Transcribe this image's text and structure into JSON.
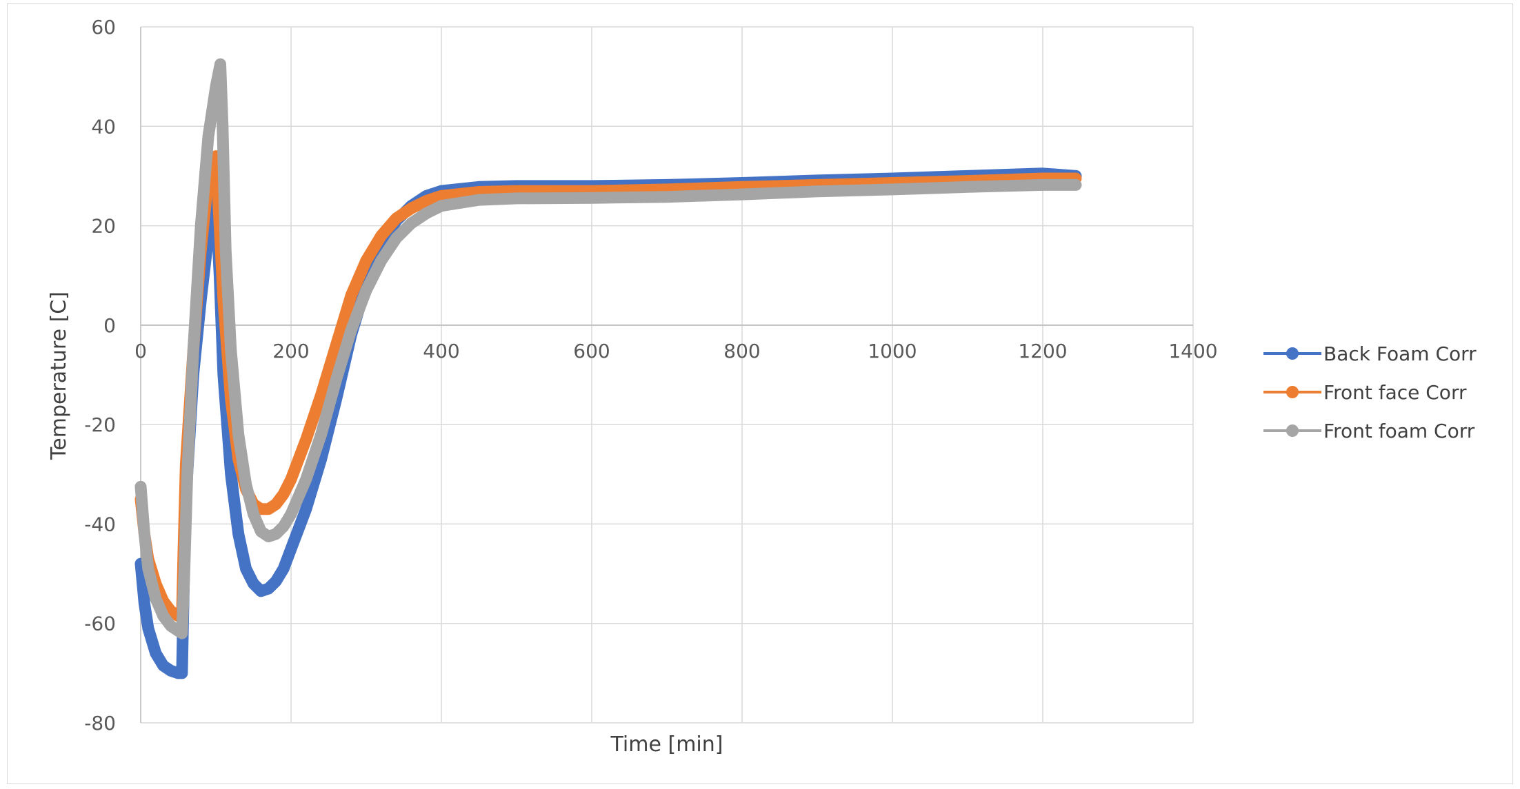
{
  "chart_data": {
    "type": "line",
    "title": "",
    "xlabel": "Time [min]",
    "ylabel": "Temperature [C]",
    "xlim": [
      0,
      1400
    ],
    "ylim": [
      -80,
      60
    ],
    "xticks": [
      0,
      200,
      400,
      600,
      800,
      1000,
      1200,
      1400
    ],
    "yticks": [
      -80,
      -60,
      -40,
      -20,
      0,
      20,
      40,
      60
    ],
    "x_tick_labels": [
      "0",
      "200",
      "400",
      "600",
      "800",
      "1000",
      "1200",
      "1400"
    ],
    "y_tick_labels": [
      "-80",
      "-60",
      "-40",
      "-20",
      "0",
      "20",
      "40",
      "60"
    ],
    "grid": true,
    "legend_position": "right",
    "series": [
      {
        "name": "Back Foam Corr",
        "color": "#4472C4",
        "points": [
          [
            0,
            -48
          ],
          [
            5,
            -56
          ],
          [
            10,
            -61
          ],
          [
            20,
            -66
          ],
          [
            30,
            -68.5
          ],
          [
            40,
            -69.5
          ],
          [
            50,
            -70
          ],
          [
            55,
            -70
          ],
          [
            57,
            -55
          ],
          [
            60,
            -35
          ],
          [
            70,
            -10
          ],
          [
            80,
            5
          ],
          [
            90,
            18
          ],
          [
            97,
            28
          ],
          [
            100,
            25
          ],
          [
            105,
            10
          ],
          [
            110,
            -10
          ],
          [
            120,
            -30
          ],
          [
            130,
            -42
          ],
          [
            140,
            -49
          ],
          [
            150,
            -52
          ],
          [
            160,
            -53.5
          ],
          [
            170,
            -53
          ],
          [
            180,
            -51.5
          ],
          [
            190,
            -49
          ],
          [
            200,
            -45
          ],
          [
            220,
            -37
          ],
          [
            240,
            -27
          ],
          [
            260,
            -15
          ],
          [
            280,
            -2
          ],
          [
            300,
            8
          ],
          [
            320,
            16
          ],
          [
            340,
            21
          ],
          [
            360,
            24
          ],
          [
            380,
            26
          ],
          [
            400,
            27
          ],
          [
            450,
            27.8
          ],
          [
            500,
            28
          ],
          [
            600,
            28
          ],
          [
            700,
            28.2
          ],
          [
            800,
            28.6
          ],
          [
            900,
            29.1
          ],
          [
            1000,
            29.5
          ],
          [
            1100,
            30
          ],
          [
            1200,
            30.5
          ],
          [
            1244,
            30
          ]
        ]
      },
      {
        "name": "Front face Corr",
        "color": "#ED7D31",
        "points": [
          [
            0,
            -35
          ],
          [
            5,
            -42
          ],
          [
            10,
            -47
          ],
          [
            20,
            -52
          ],
          [
            30,
            -55.5
          ],
          [
            40,
            -57.5
          ],
          [
            50,
            -58.5
          ],
          [
            55,
            -58
          ],
          [
            57,
            -45
          ],
          [
            60,
            -28
          ],
          [
            70,
            -5
          ],
          [
            80,
            15
          ],
          [
            90,
            30
          ],
          [
            100,
            34
          ],
          [
            105,
            20
          ],
          [
            110,
            5
          ],
          [
            120,
            -15
          ],
          [
            130,
            -27
          ],
          [
            140,
            -33
          ],
          [
            150,
            -36
          ],
          [
            160,
            -37
          ],
          [
            170,
            -37
          ],
          [
            180,
            -36
          ],
          [
            190,
            -34
          ],
          [
            200,
            -31
          ],
          [
            220,
            -23
          ],
          [
            240,
            -14
          ],
          [
            260,
            -4
          ],
          [
            280,
            6
          ],
          [
            300,
            13
          ],
          [
            320,
            18
          ],
          [
            340,
            21.5
          ],
          [
            360,
            23.5
          ],
          [
            380,
            25
          ],
          [
            400,
            26
          ],
          [
            450,
            26.8
          ],
          [
            500,
            27
          ],
          [
            600,
            27
          ],
          [
            700,
            27.3
          ],
          [
            800,
            27.8
          ],
          [
            900,
            28.2
          ],
          [
            1000,
            28.6
          ],
          [
            1100,
            29
          ],
          [
            1200,
            29.5
          ],
          [
            1244,
            29.5
          ]
        ]
      },
      {
        "name": "Front foam Corr",
        "color": "#A5A5A5",
        "points": [
          [
            0,
            -32.5
          ],
          [
            5,
            -42
          ],
          [
            10,
            -49
          ],
          [
            20,
            -55
          ],
          [
            30,
            -58.5
          ],
          [
            40,
            -60.5
          ],
          [
            50,
            -61.5
          ],
          [
            55,
            -62
          ],
          [
            58,
            -50
          ],
          [
            62,
            -30
          ],
          [
            70,
            -5
          ],
          [
            80,
            20
          ],
          [
            90,
            38
          ],
          [
            100,
            48
          ],
          [
            106,
            52.5
          ],
          [
            109,
            40
          ],
          [
            113,
            15
          ],
          [
            120,
            -5
          ],
          [
            130,
            -22
          ],
          [
            140,
            -32
          ],
          [
            150,
            -38
          ],
          [
            160,
            -41.5
          ],
          [
            170,
            -42.5
          ],
          [
            180,
            -42
          ],
          [
            190,
            -40.5
          ],
          [
            200,
            -38
          ],
          [
            220,
            -31
          ],
          [
            240,
            -22
          ],
          [
            260,
            -11
          ],
          [
            280,
            -1
          ],
          [
            300,
            7
          ],
          [
            320,
            13
          ],
          [
            340,
            17.5
          ],
          [
            360,
            20.5
          ],
          [
            380,
            22.5
          ],
          [
            400,
            24
          ],
          [
            450,
            25.2
          ],
          [
            500,
            25.5
          ],
          [
            600,
            25.6
          ],
          [
            700,
            25.8
          ],
          [
            800,
            26.3
          ],
          [
            900,
            26.9
          ],
          [
            1000,
            27.3
          ],
          [
            1100,
            27.8
          ],
          [
            1200,
            28.2
          ],
          [
            1244,
            28.2
          ]
        ]
      }
    ]
  }
}
